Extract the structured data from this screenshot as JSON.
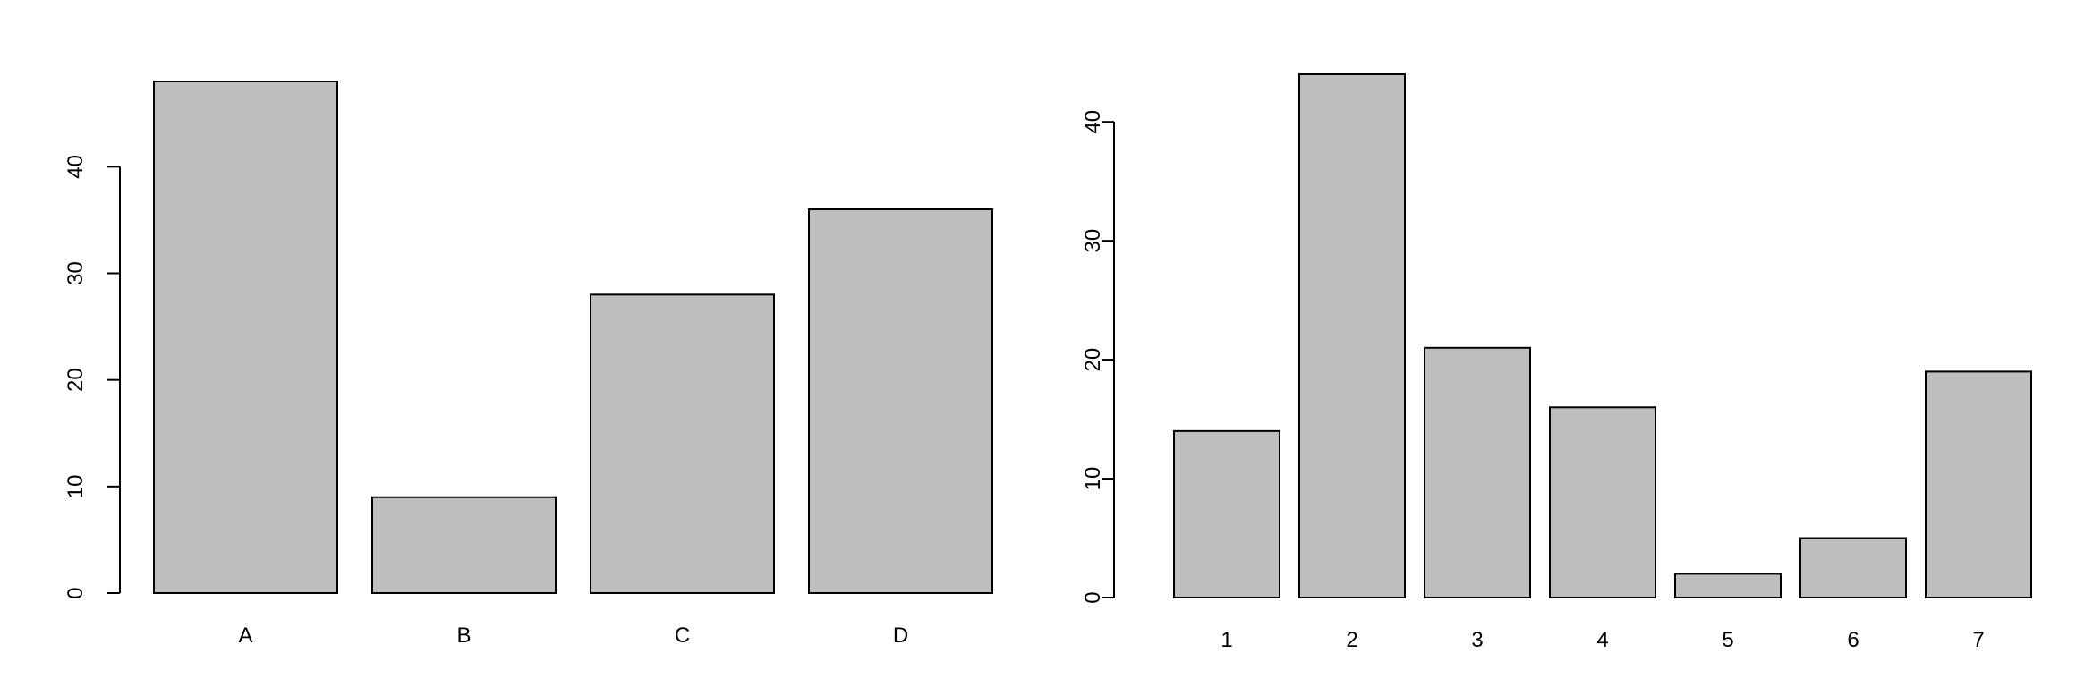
{
  "chart_data": [
    {
      "type": "bar",
      "categories": [
        "A",
        "B",
        "C",
        "D"
      ],
      "values": [
        48,
        9,
        28,
        36
      ],
      "yticks": [
        0,
        10,
        20,
        30,
        40
      ],
      "ylim": [
        0,
        48
      ],
      "title": "",
      "xlabel": "",
      "ylabel": "",
      "bar_color": "#bebebe",
      "edge_color": "#000000",
      "grid": false
    },
    {
      "type": "bar",
      "categories": [
        "1",
        "2",
        "3",
        "4",
        "5",
        "6",
        "7"
      ],
      "values": [
        14,
        44,
        21,
        16,
        2,
        5,
        19
      ],
      "yticks": [
        0,
        10,
        20,
        30,
        40
      ],
      "ylim": [
        0,
        44
      ],
      "title": "",
      "xlabel": "",
      "ylabel": "",
      "bar_color": "#bebebe",
      "edge_color": "#000000",
      "grid": false
    }
  ]
}
